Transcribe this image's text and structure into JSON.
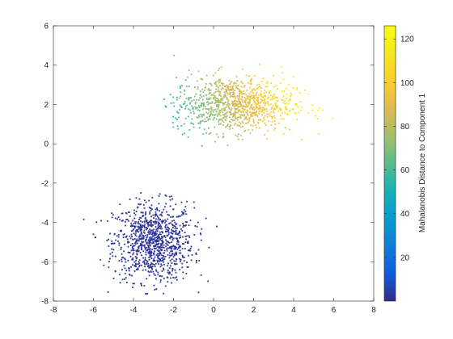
{
  "chart_data": {
    "type": "scatter",
    "title": "",
    "xlabel": "",
    "ylabel": "",
    "xlim": [
      -8,
      8
    ],
    "ylim": [
      -8,
      6
    ],
    "xticks": [
      -8,
      -6,
      -4,
      -2,
      0,
      2,
      4,
      6,
      8
    ],
    "yticks": [
      -8,
      -6,
      -4,
      -2,
      0,
      2,
      4,
      6
    ],
    "grid": false,
    "colorbar": {
      "label": "Mahalanobis Distance to Component 1",
      "range": [
        0,
        126
      ],
      "ticks": [
        20,
        40,
        60,
        80,
        100,
        120
      ],
      "colormap": "parula"
    },
    "clusters": [
      {
        "center": [
          -3.0,
          -5.0
        ],
        "spread": [
          1.0,
          1.0
        ],
        "count": 1000,
        "color_value_range": [
          0,
          5
        ],
        "visible_extent": {
          "x": [
            -6.5,
            0.5
          ],
          "y": [
            -7.8,
            -2.4
          ]
        }
      },
      {
        "center": [
          1.0,
          2.0
        ],
        "spread": [
          1.5,
          0.7
        ],
        "count": 1000,
        "color_value_range": [
          45,
          120
        ],
        "visible_extent": {
          "x": [
            -2.5,
            6.0
          ],
          "y": [
            -0.2,
            4.5
          ]
        }
      }
    ],
    "marker_style": "point"
  }
}
